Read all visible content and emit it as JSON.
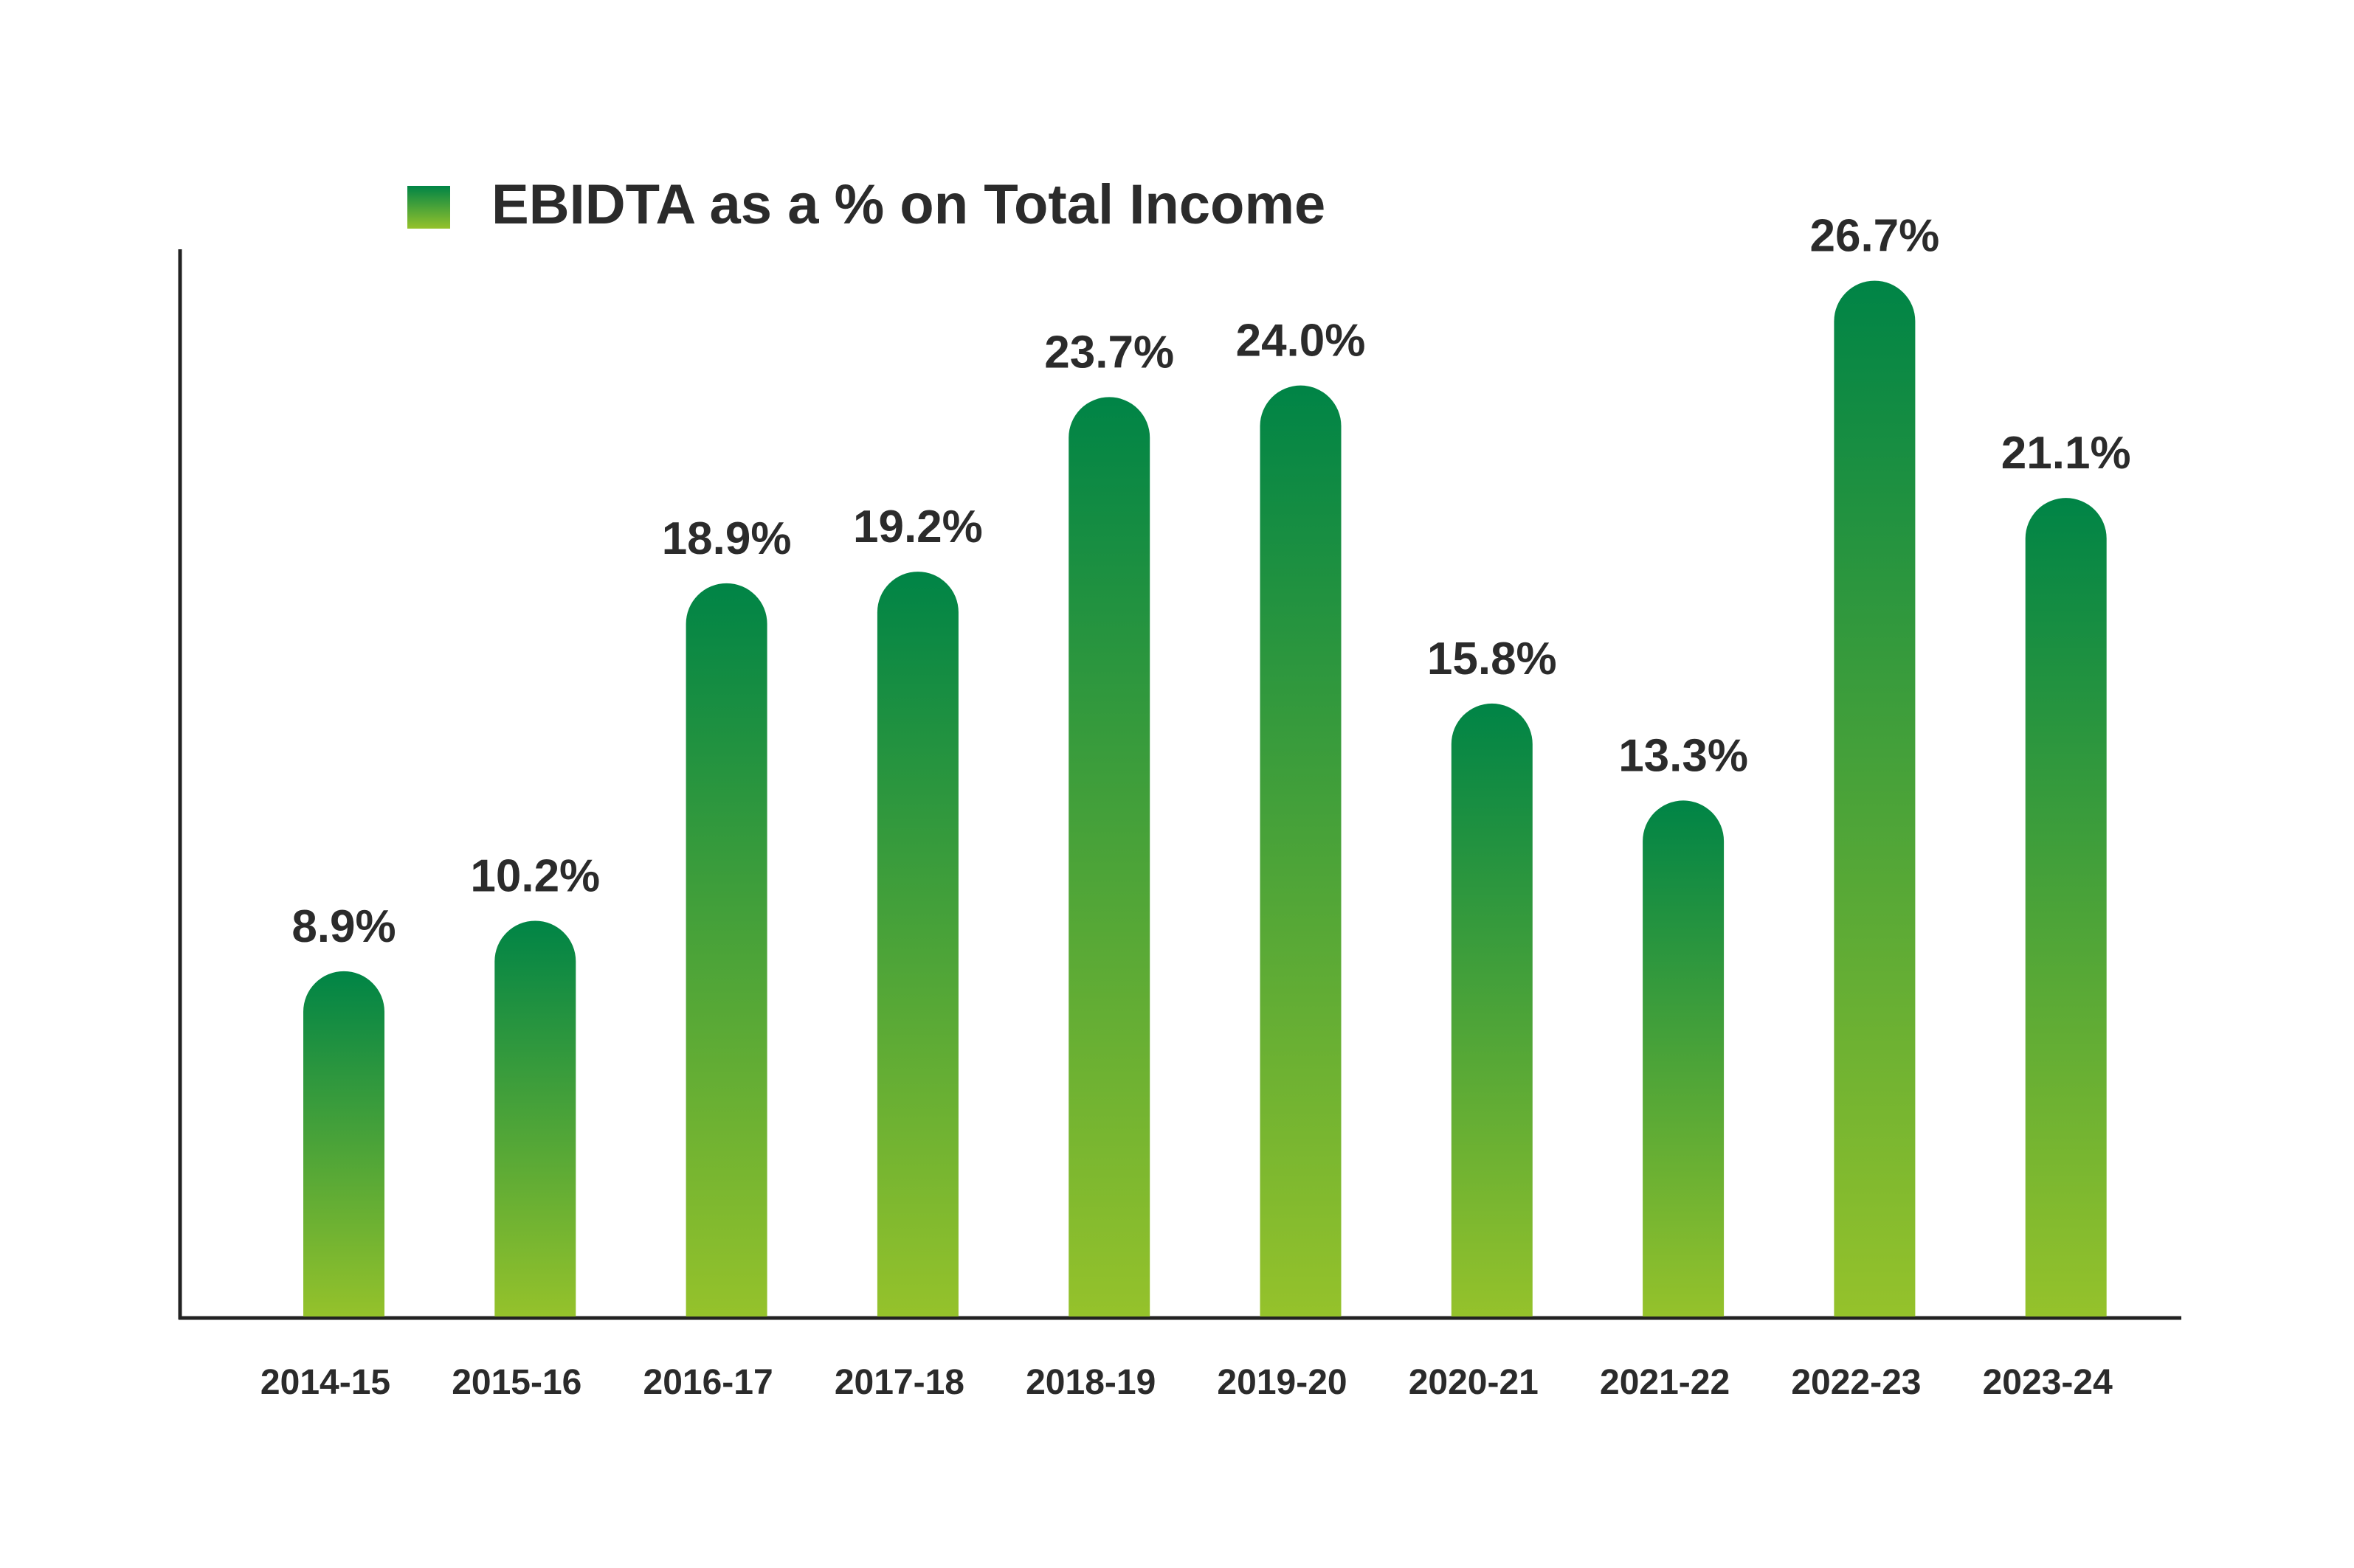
{
  "chart_data": {
    "type": "bar",
    "categories": [
      "2014-15",
      "2015-16",
      "2016-17",
      "2017-18",
      "2018-19",
      "2019-20",
      "2020-21",
      "2021-22",
      "2022-23",
      "2023-24"
    ],
    "series": [
      {
        "name": "EBIDTA as a % on Total Income",
        "values": [
          8.9,
          10.2,
          18.9,
          19.2,
          23.7,
          24.0,
          15.8,
          13.3,
          26.7,
          21.1
        ]
      }
    ],
    "value_labels": [
      "8.9%",
      "10.2%",
      "18.9%",
      "19.2%",
      "23.7%",
      "24.0%",
      "15.8%",
      "13.3%",
      "26.7%",
      "21.1%"
    ],
    "title": "",
    "xlabel": "",
    "ylabel": "",
    "ylim": [
      0,
      28
    ],
    "grid": false,
    "legend_position": "top-left",
    "colors": {
      "bar_top": "#008446",
      "bar_bottom": "#95c22b",
      "axis": "#222222",
      "text": "#2b2b2b"
    }
  }
}
